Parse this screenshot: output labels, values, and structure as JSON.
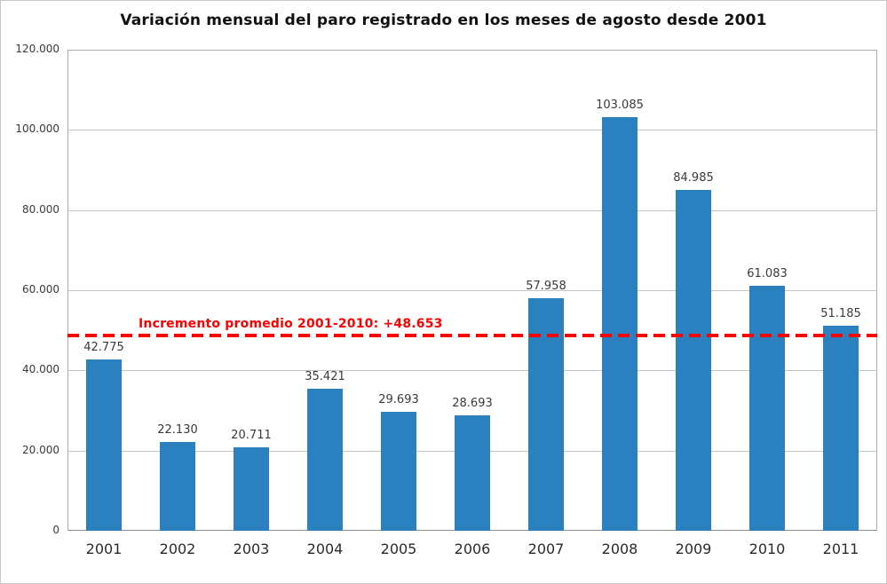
{
  "chart_data": {
    "type": "bar",
    "title": "Variación mensual del paro registrado en los meses de agosto desde 2001",
    "categories": [
      "2001",
      "2002",
      "2003",
      "2004",
      "2005",
      "2006",
      "2007",
      "2008",
      "2009",
      "2010",
      "2011"
    ],
    "values": [
      42775,
      22130,
      20711,
      35421,
      29693,
      28693,
      57958,
      103085,
      84985,
      61083,
      51185
    ],
    "value_labels": [
      "42.775",
      "22.130",
      "20.711",
      "35.421",
      "29.693",
      "28.693",
      "57.958",
      "103.085",
      "84.985",
      "61.083",
      "51.185"
    ],
    "xlabel": "",
    "ylabel": "",
    "ylim": [
      0,
      120000
    ],
    "yticks": [
      0,
      20000,
      40000,
      60000,
      80000,
      100000,
      120000
    ],
    "ytick_labels": [
      "0",
      "20.000",
      "40.000",
      "60.000",
      "80.000",
      "100.000",
      "120.000"
    ],
    "grid": "horizontal",
    "legend": "none",
    "bar_color": "#2b80c0",
    "reference_line": {
      "value": 48653,
      "label": "Incremento promedio 2001-2010: +48.653",
      "color": "#ff0000",
      "style": "dashed"
    }
  }
}
